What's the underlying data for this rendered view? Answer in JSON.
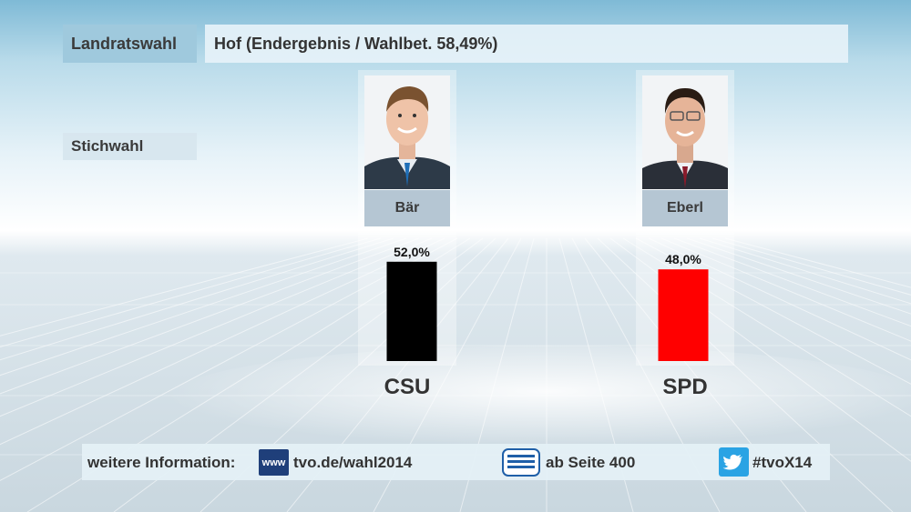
{
  "header": {
    "label": "Landratswahl",
    "title": "Hof (Endergebnis / Wahlbet. 58,49%)"
  },
  "subheader": {
    "label": "Stichwahl"
  },
  "candidates": [
    {
      "name": "Bär",
      "party": "CSU",
      "value_label": "52,0%"
    },
    {
      "name": "Eberl",
      "party": "SPD",
      "value_label": "48,0%"
    }
  ],
  "chart_data": {
    "type": "bar",
    "title": "Hof (Endergebnis / Wahlbet. 58,49%)",
    "categories": [
      "CSU",
      "SPD"
    ],
    "values": [
      52.0,
      48.0
    ],
    "colors": [
      "#000000",
      "#ff0000"
    ],
    "ylim": [
      0,
      100
    ],
    "xlabel": "",
    "ylabel": ""
  },
  "footer": {
    "info_label": "weitere Information:",
    "www_icon_text": "www",
    "website": "tvo.de/wahl2014",
    "teletext": "ab Seite 400",
    "hashtag": "#tvoX14"
  }
}
